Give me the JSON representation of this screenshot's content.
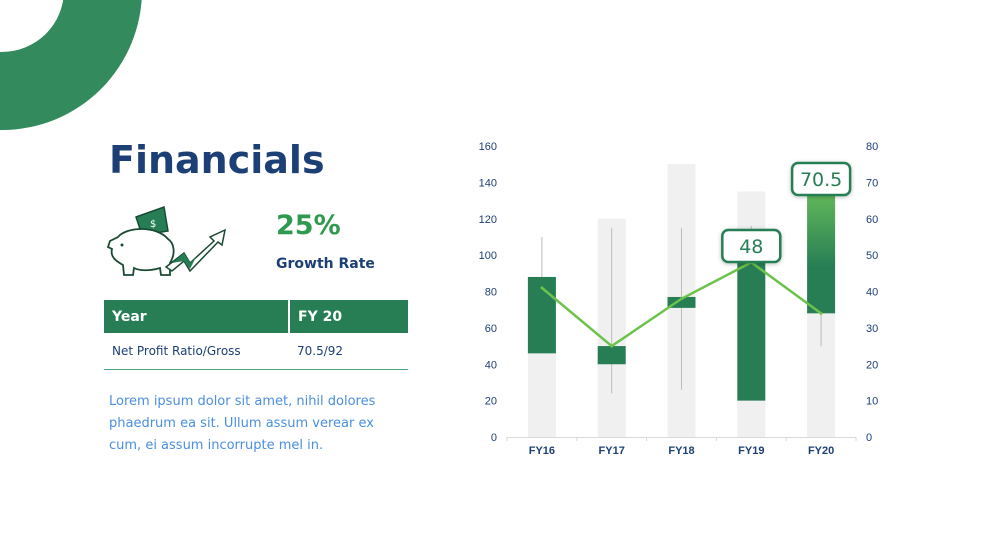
{
  "title": "Financials",
  "growth": {
    "value": "25%",
    "label": "Growth Rate"
  },
  "table": {
    "headers": [
      "Year",
      "FY 20"
    ],
    "rows": [
      [
        "Net Profit Ratio/Gross",
        "70.5/92"
      ]
    ]
  },
  "description": "Lorem ipsum dolor sit amet, nihil dolores phaedrum ea sit. Ullum assum verear ex cum, ei assum incorrupte mel in.",
  "icons": [
    "piggy-bank-icon",
    "money-icon",
    "trend-arrow-icon"
  ],
  "colors": {
    "brand": "#277e55",
    "title": "#1c3f75",
    "line": "#6cc24a",
    "gray_bar": "#f0f0f0",
    "accent_text": "#2f9a4f"
  },
  "chart_data": {
    "type": "bar",
    "categories": [
      "FY16",
      "FY17",
      "FY18",
      "FY19",
      "FY20"
    ],
    "left_axis": {
      "range": [
        0,
        160
      ],
      "ticks": [
        "0",
        "20",
        "40",
        "60",
        "80",
        "100",
        "120",
        "140",
        "160"
      ]
    },
    "right_axis": {
      "range": [
        0,
        80
      ],
      "ticks": [
        "0",
        "10",
        "20",
        "30",
        "40",
        "50",
        "60",
        "70",
        "80"
      ]
    },
    "background_bars": [
      88,
      120,
      150,
      135,
      141
    ],
    "candles": [
      {
        "low": 46,
        "high": 110,
        "open": 46,
        "close": 88
      },
      {
        "low": 24,
        "high": 115,
        "open": 40,
        "close": 50
      },
      {
        "low": 26,
        "high": 115,
        "open": 71,
        "close": 77
      },
      {
        "low": 20,
        "high": 116,
        "open": 20,
        "close": 96
      },
      {
        "low": 50,
        "high": 141,
        "open": 68,
        "close": 141
      }
    ],
    "line_right_axis": [
      41,
      25,
      38,
      48,
      34
    ],
    "callouts": [
      {
        "category": "FY19",
        "label": "48"
      },
      {
        "category": "FY20",
        "label": "70.5"
      }
    ],
    "grid": false
  }
}
